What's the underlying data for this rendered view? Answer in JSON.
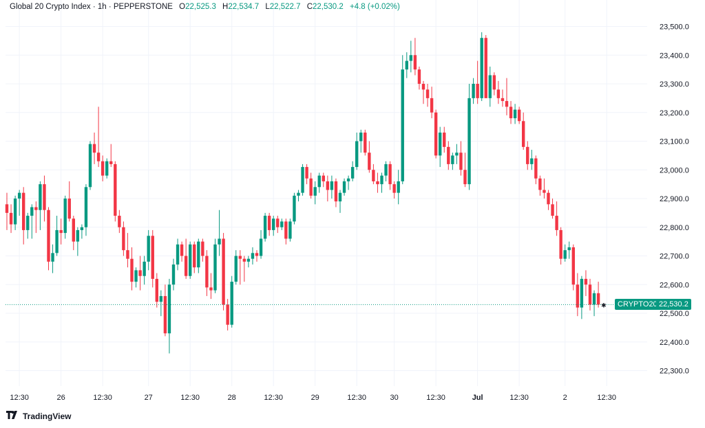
{
  "header": {
    "symbol": "Global 20 Crypto Index · 1h · PEPPERSTONE",
    "open_label": "O",
    "open": "22,525.3",
    "high_label": "H",
    "high": "22,534.7",
    "low_label": "L",
    "low": "22,522.7",
    "close_label": "C",
    "close": "22,530.2",
    "change": "+4.8 (+0.02%)"
  },
  "price_tag": {
    "symbol": "CRYPTO20",
    "price": "22,530.2",
    "value": 22530.2
  },
  "brand": {
    "name": "TradingView",
    "icon": "tradingview-logo-icon"
  },
  "colors": {
    "up": "#089981",
    "down": "#f23645",
    "grid": "#f0f3fa",
    "text": "#131722"
  },
  "chart_data": {
    "type": "candlestick",
    "y_axis": {
      "min": 22200,
      "max": 23600,
      "position": "right",
      "ticks": [
        22300,
        22400,
        22500,
        22600,
        22700,
        22800,
        22900,
        23000,
        23100,
        23200,
        23300,
        23400,
        23500
      ],
      "tick_labels": [
        "22,300.0",
        "22,400.0",
        "22,500.0",
        "22,600.0",
        "22,700.0",
        "22,800.0",
        "22,900.0",
        "23,000.0",
        "23,100.0",
        "23,200.0",
        "23,300.0",
        "23,400.0",
        "23,500.0"
      ]
    },
    "x_axis": {
      "labels": [
        {
          "text": "12:30",
          "bar": 3
        },
        {
          "text": "26",
          "bar": 13
        },
        {
          "text": "12:30",
          "bar": 23
        },
        {
          "text": "27",
          "bar": 34
        },
        {
          "text": "12:30",
          "bar": 44
        },
        {
          "text": "28",
          "bar": 54
        },
        {
          "text": "12:30",
          "bar": 64
        },
        {
          "text": "29",
          "bar": 74
        },
        {
          "text": "12:30",
          "bar": 84
        },
        {
          "text": "30",
          "bar": 93
        },
        {
          "text": "12:30",
          "bar": 103
        },
        {
          "text": "Jul",
          "bar": 113
        },
        {
          "text": "12:30",
          "bar": 123
        },
        {
          "text": "2",
          "bar": 134
        },
        {
          "text": "12:30",
          "bar": 144
        }
      ]
    },
    "grid": true,
    "candles": [
      [
        22880,
        22920,
        22790,
        22850
      ],
      [
        22850,
        22880,
        22780,
        22810
      ],
      [
        22810,
        22910,
        22790,
        22900
      ],
      [
        22900,
        22930,
        22840,
        22920
      ],
      [
        22920,
        22940,
        22740,
        22790
      ],
      [
        22790,
        22850,
        22760,
        22840
      ],
      [
        22840,
        22880,
        22760,
        22870
      ],
      [
        22870,
        22890,
        22780,
        22860
      ],
      [
        22860,
        22960,
        22790,
        22950
      ],
      [
        22950,
        22980,
        22820,
        22860
      ],
      [
        22860,
        22870,
        22650,
        22680
      ],
      [
        22680,
        22740,
        22640,
        22710
      ],
      [
        22710,
        22840,
        22700,
        22790
      ],
      [
        22790,
        22830,
        22740,
        22780
      ],
      [
        22780,
        22910,
        22760,
        22900
      ],
      [
        22900,
        22960,
        22820,
        22830
      ],
      [
        22830,
        22840,
        22720,
        22750
      ],
      [
        22750,
        22800,
        22700,
        22790
      ],
      [
        22790,
        22810,
        22760,
        22800
      ],
      [
        22800,
        22950,
        22770,
        22940
      ],
      [
        22940,
        23100,
        22930,
        23090
      ],
      [
        23090,
        23130,
        23020,
        23060
      ],
      [
        23060,
        23220,
        23010,
        23030
      ],
      [
        23030,
        23050,
        22960,
        22980
      ],
      [
        22980,
        23040,
        22970,
        23030
      ],
      [
        23030,
        23090,
        23010,
        23020
      ],
      [
        23020,
        23030,
        22820,
        22840
      ],
      [
        22840,
        22860,
        22780,
        22800
      ],
      [
        22800,
        22820,
        22700,
        22720
      ],
      [
        22720,
        22780,
        22660,
        22690
      ],
      [
        22690,
        22730,
        22580,
        22610
      ],
      [
        22610,
        22660,
        22590,
        22650
      ],
      [
        22650,
        22700,
        22580,
        22630
      ],
      [
        22630,
        22700,
        22600,
        22680
      ],
      [
        22680,
        22790,
        22650,
        22770
      ],
      [
        22770,
        22790,
        22590,
        22620
      ],
      [
        22620,
        22640,
        22520,
        22540
      ],
      [
        22540,
        22580,
        22490,
        22560
      ],
      [
        22560,
        22600,
        22420,
        22430
      ],
      [
        22430,
        22620,
        22360,
        22600
      ],
      [
        22600,
        22690,
        22580,
        22670
      ],
      [
        22670,
        22760,
        22650,
        22740
      ],
      [
        22740,
        22750,
        22680,
        22700
      ],
      [
        22700,
        22760,
        22620,
        22630
      ],
      [
        22630,
        22750,
        22620,
        22740
      ],
      [
        22740,
        22750,
        22640,
        22660
      ],
      [
        22660,
        22760,
        22640,
        22750
      ],
      [
        22750,
        22760,
        22680,
        22700
      ],
      [
        22700,
        22720,
        22560,
        22590
      ],
      [
        22590,
        22640,
        22550,
        22580
      ],
      [
        22580,
        22760,
        22570,
        22740
      ],
      [
        22740,
        22860,
        22700,
        22760
      ],
      [
        22760,
        22780,
        22510,
        22530
      ],
      [
        22530,
        22550,
        22440,
        22460
      ],
      [
        22460,
        22630,
        22450,
        22610
      ],
      [
        22610,
        22720,
        22600,
        22700
      ],
      [
        22700,
        22720,
        22600,
        22690
      ],
      [
        22690,
        22700,
        22610,
        22680
      ],
      [
        22680,
        22700,
        22660,
        22690
      ],
      [
        22690,
        22730,
        22670,
        22710
      ],
      [
        22710,
        22720,
        22680,
        22700
      ],
      [
        22700,
        22790,
        22690,
        22760
      ],
      [
        22760,
        22850,
        22750,
        22840
      ],
      [
        22840,
        22850,
        22770,
        22790
      ],
      [
        22790,
        22840,
        22770,
        22830
      ],
      [
        22830,
        22840,
        22780,
        22800
      ],
      [
        22800,
        22830,
        22790,
        22820
      ],
      [
        22820,
        22830,
        22740,
        22760
      ],
      [
        22760,
        22830,
        22750,
        22820
      ],
      [
        22820,
        22920,
        22810,
        22910
      ],
      [
        22910,
        22930,
        22890,
        22920
      ],
      [
        22920,
        23020,
        22910,
        23010
      ],
      [
        23010,
        23020,
        22950,
        22970
      ],
      [
        22970,
        22990,
        22900,
        22910
      ],
      [
        22910,
        22960,
        22880,
        22940
      ],
      [
        22940,
        22990,
        22920,
        22980
      ],
      [
        22980,
        22990,
        22940,
        22960
      ],
      [
        22960,
        22980,
        22890,
        22930
      ],
      [
        22930,
        22980,
        22900,
        22960
      ],
      [
        22960,
        22970,
        22870,
        22890
      ],
      [
        22890,
        22930,
        22850,
        22920
      ],
      [
        22920,
        22970,
        22910,
        22960
      ],
      [
        22960,
        22980,
        22930,
        22970
      ],
      [
        22970,
        23030,
        22960,
        23010
      ],
      [
        23010,
        23130,
        23000,
        23100
      ],
      [
        23100,
        23140,
        23060,
        23130
      ],
      [
        23130,
        23140,
        23050,
        23060
      ],
      [
        23060,
        23100,
        22990,
        23000
      ],
      [
        23000,
        23020,
        22950,
        22960
      ],
      [
        22960,
        22990,
        22920,
        22950
      ],
      [
        22950,
        22990,
        22920,
        22980
      ],
      [
        22980,
        23030,
        22960,
        23020
      ],
      [
        23020,
        23030,
        22930,
        22950
      ],
      [
        22950,
        22960,
        22900,
        22920
      ],
      [
        22920,
        23000,
        22880,
        22960
      ],
      [
        22960,
        23400,
        22950,
        23350
      ],
      [
        23350,
        23410,
        23320,
        23380
      ],
      [
        23380,
        23450,
        23340,
        23400
      ],
      [
        23400,
        23460,
        23330,
        23350
      ],
      [
        23350,
        23360,
        23280,
        23300
      ],
      [
        23300,
        23310,
        23230,
        23280
      ],
      [
        23280,
        23300,
        23220,
        23250
      ],
      [
        23250,
        23290,
        23180,
        23200
      ],
      [
        23200,
        23210,
        23040,
        23050
      ],
      [
        23050,
        23150,
        23010,
        23130
      ],
      [
        23130,
        23150,
        23060,
        23080
      ],
      [
        23080,
        23100,
        23000,
        23020
      ],
      [
        23020,
        23060,
        23000,
        23050
      ],
      [
        23050,
        23090,
        23020,
        23060
      ],
      [
        23060,
        23100,
        22980,
        23000
      ],
      [
        23000,
        23060,
        22940,
        22950
      ],
      [
        22950,
        23300,
        22930,
        23250
      ],
      [
        23250,
        23320,
        23230,
        23300
      ],
      [
        23300,
        23380,
        23230,
        23250
      ],
      [
        23250,
        23480,
        23240,
        23460
      ],
      [
        23460,
        23470,
        23250,
        23250
      ],
      [
        23250,
        23360,
        23220,
        23330
      ],
      [
        23330,
        23340,
        23260,
        23280
      ],
      [
        23280,
        23310,
        23230,
        23250
      ],
      [
        23250,
        23280,
        23220,
        23240
      ],
      [
        23240,
        23320,
        23190,
        23220
      ],
      [
        23220,
        23240,
        23160,
        23180
      ],
      [
        23180,
        23230,
        23160,
        23210
      ],
      [
        23210,
        23220,
        23160,
        23170
      ],
      [
        23170,
        23200,
        23070,
        23080
      ],
      [
        23080,
        23100,
        23000,
        23020
      ],
      [
        23020,
        23070,
        23000,
        23040
      ],
      [
        23040,
        23050,
        22950,
        22970
      ],
      [
        22970,
        22980,
        22910,
        22930
      ],
      [
        22930,
        22970,
        22900,
        22920
      ],
      [
        22920,
        22930,
        22860,
        22880
      ],
      [
        22880,
        22900,
        22830,
        22840
      ],
      [
        22840,
        22890,
        22770,
        22790
      ],
      [
        22790,
        22800,
        22670,
        22690
      ],
      [
        22690,
        22740,
        22680,
        22720
      ],
      [
        22720,
        22750,
        22690,
        22730
      ],
      [
        22730,
        22740,
        22580,
        22600
      ],
      [
        22600,
        22640,
        22490,
        22520
      ],
      [
        22520,
        22630,
        22480,
        22620
      ],
      [
        22620,
        22650,
        22560,
        22600
      ],
      [
        22600,
        22620,
        22510,
        22530
      ],
      [
        22530,
        22580,
        22490,
        22570
      ],
      [
        22570,
        22610,
        22520,
        22530
      ]
    ],
    "last_price": 22530.2
  }
}
